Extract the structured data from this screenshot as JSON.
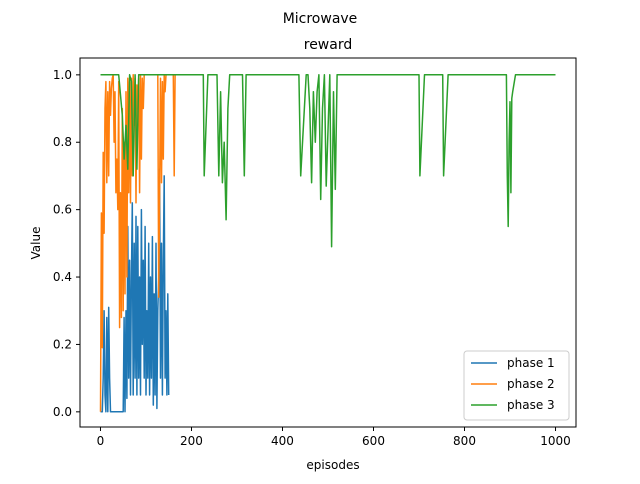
{
  "chart_data": {
    "type": "line",
    "suptitle": "Microwave",
    "title": "reward",
    "xlabel": "episodes",
    "ylabel": "Value",
    "xlim": [
      -45,
      1045
    ],
    "ylim": [
      -0.045,
      1.05
    ],
    "xticks": [
      0,
      200,
      400,
      600,
      800,
      1000
    ],
    "yticks": [
      0.0,
      0.2,
      0.4,
      0.6,
      0.8,
      1.0
    ],
    "xtick_labels": [
      "0",
      "200",
      "400",
      "600",
      "800",
      "1000"
    ],
    "ytick_labels": [
      "0.0",
      "0.2",
      "0.4",
      "0.6",
      "0.8",
      "1.0"
    ],
    "legend_position": "lower-right",
    "grid": false,
    "series": [
      {
        "name": "phase 1",
        "color": "#1f77b4",
        "x": [
          0,
          2,
          4,
          6,
          8,
          10,
          12,
          14,
          16,
          18,
          20,
          22,
          24,
          26,
          28,
          30,
          32,
          34,
          36,
          38,
          40,
          42,
          44,
          46,
          48,
          50,
          52,
          54,
          56,
          58,
          60,
          62,
          64,
          66,
          68,
          70,
          72,
          74,
          76,
          78,
          80,
          82,
          84,
          86,
          88,
          90,
          92,
          94,
          96,
          98,
          100,
          102,
          104,
          106,
          108,
          110,
          112,
          114,
          116,
          118,
          120,
          122,
          124,
          126,
          128,
          130,
          132,
          134,
          136,
          138,
          140,
          142,
          144,
          146,
          148,
          150
        ],
        "values": [
          0.0,
          0.0,
          0.0,
          0.1,
          0.3,
          0.05,
          0.0,
          0.28,
          0.0,
          0.31,
          0.1,
          0.0,
          0.0,
          0.0,
          0.0,
          0.0,
          0.0,
          0.0,
          0.0,
          0.0,
          0.0,
          0.0,
          0.0,
          0.0,
          0.0,
          0.0,
          0.28,
          0.0,
          0.3,
          0.04,
          0.55,
          0.1,
          0.45,
          0.05,
          0.4,
          0.62,
          0.05,
          0.5,
          0.1,
          0.58,
          0.05,
          0.55,
          0.1,
          0.4,
          0.05,
          0.6,
          0.2,
          0.45,
          0.1,
          0.55,
          0.05,
          0.3,
          0.1,
          0.5,
          0.05,
          0.4,
          0.1,
          0.52,
          0.02,
          0.35,
          0.05,
          0.5,
          0.01,
          0.3,
          0.4,
          0.72,
          0.1,
          0.5,
          0.05,
          0.45,
          0.7,
          0.1,
          0.3,
          0.05,
          0.35,
          0.05
        ]
      },
      {
        "name": "phase 2",
        "color": "#ff7f0e",
        "x": [
          0,
          2,
          4,
          6,
          8,
          10,
          12,
          14,
          16,
          18,
          20,
          22,
          24,
          26,
          28,
          30,
          32,
          34,
          36,
          38,
          40,
          42,
          44,
          46,
          48,
          50,
          52,
          54,
          56,
          58,
          60,
          62,
          64,
          66,
          68,
          70,
          72,
          74,
          76,
          78,
          80,
          82,
          84,
          86,
          88,
          90,
          92,
          94,
          96,
          98,
          100,
          102,
          104,
          106,
          108,
          110,
          112,
          114,
          116,
          118,
          120,
          122,
          124,
          126,
          128,
          130,
          132,
          134,
          136,
          138,
          140,
          142,
          144,
          146,
          148,
          150,
          152,
          154,
          156,
          158,
          160,
          162,
          164,
          166,
          168,
          170,
          172,
          174,
          176,
          178,
          180,
          182,
          184,
          186,
          188,
          190,
          192,
          194,
          196,
          198
        ],
        "values": [
          0.0,
          0.59,
          0.19,
          0.77,
          0.53,
          0.9,
          0.98,
          0.68,
          0.95,
          0.7,
          0.98,
          0.88,
          0.96,
          0.99,
          1.0,
          0.8,
          0.95,
          0.65,
          0.75,
          0.6,
          0.98,
          0.25,
          0.65,
          0.28,
          0.9,
          0.3,
          0.8,
          0.35,
          0.95,
          0.4,
          0.99,
          0.65,
          0.98,
          0.62,
          0.99,
          0.7,
          1.0,
          0.85,
          0.99,
          0.62,
          0.97,
          0.9,
          0.99,
          0.65,
          1.0,
          0.75,
          0.99,
          0.9,
          1.0,
          1.0,
          1.0,
          1.0,
          1.0,
          1.0,
          1.0,
          1.0,
          1.0,
          1.0,
          1.0,
          1.0,
          1.0,
          1.0,
          1.0,
          1.0,
          0.34,
          0.65,
          0.99,
          0.68,
          0.98,
          0.75,
          1.0,
          0.95,
          1.0,
          1.0,
          1.0,
          1.0,
          1.0,
          1.0,
          1.0,
          1.0,
          1.0,
          0.7,
          1.0,
          1.0,
          1.0,
          1.0,
          1.0,
          1.0,
          1.0,
          1.0,
          1.0,
          1.0,
          1.0,
          1.0,
          1.0,
          1.0,
          1.0,
          1.0,
          1.0,
          1.0
        ]
      },
      {
        "name": "phase 3",
        "color": "#2ca02c",
        "x": [
          0,
          40,
          48,
          52,
          56,
          60,
          64,
          68,
          72,
          76,
          80,
          84,
          88,
          100,
          226,
          228,
          236,
          240,
          256,
          260,
          264,
          268,
          272,
          276,
          280,
          284,
          300,
          312,
          316,
          320,
          436,
          440,
          452,
          456,
          460,
          464,
          468,
          472,
          476,
          480,
          484,
          488,
          492,
          496,
          504,
          508,
          512,
          516,
          520,
          700,
          702,
          712,
          752,
          754,
          764,
          892,
          894,
          896,
          898,
          900,
          902,
          904,
          906,
          912,
          920,
          1000
        ],
        "values": [
          1.0,
          1.0,
          0.88,
          0.75,
          0.85,
          0.72,
          1.0,
          0.98,
          0.7,
          1.0,
          0.72,
          1.0,
          1.0,
          1.0,
          1.0,
          0.7,
          1.0,
          1.0,
          1.0,
          0.7,
          0.95,
          0.68,
          0.8,
          0.57,
          0.9,
          1.0,
          1.0,
          1.0,
          0.7,
          1.0,
          1.0,
          0.7,
          1.0,
          1.0,
          0.9,
          0.68,
          0.95,
          0.8,
          0.95,
          1.0,
          0.63,
          0.9,
          1.0,
          0.67,
          1.0,
          0.49,
          0.95,
          0.66,
          1.0,
          1.0,
          0.7,
          1.0,
          1.0,
          0.7,
          1.0,
          1.0,
          0.7,
          0.55,
          0.8,
          0.92,
          0.65,
          0.93,
          0.95,
          1.0,
          1.0,
          1.0
        ]
      }
    ]
  }
}
